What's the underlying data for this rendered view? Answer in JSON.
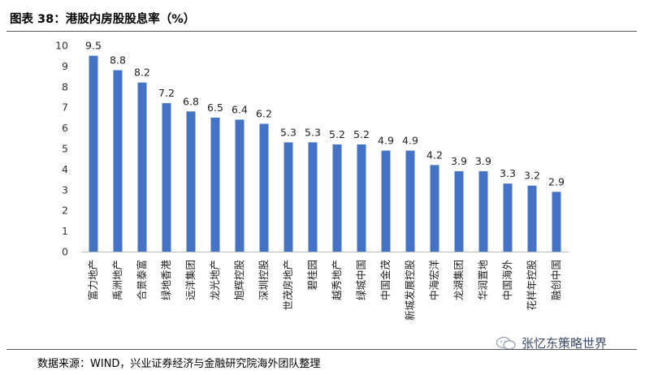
{
  "title": "图表 38：港股内房股股息率（%）",
  "source": "数据来源：WIND，兴业证券经济与金融研究院海外团队整理",
  "watermark": "张忆东策略世界",
  "colors": {
    "bar": "#4472C4",
    "axis": "#bfbfbf"
  },
  "chart_data": {
    "type": "bar",
    "title": "港股内房股股息率（%）",
    "xlabel": "",
    "ylabel": "",
    "ylim": [
      0,
      10
    ],
    "yticks": [
      0,
      1,
      2,
      3,
      4,
      5,
      6,
      7,
      8,
      9,
      10
    ],
    "grid": false,
    "legend": "none",
    "categories": [
      "富力地产",
      "禹洲地产",
      "合景泰富",
      "绿地香港",
      "远洋集团",
      "龙光地产",
      "旭辉控股",
      "深圳控股",
      "世茂房地产",
      "碧桂园",
      "越秀地产",
      "绿城中国",
      "中国金茂",
      "新城发展控股",
      "中海宏洋",
      "龙湖集团",
      "华润置地",
      "中国海外",
      "花样年控股",
      "融创中国"
    ],
    "values": [
      9.5,
      8.8,
      8.2,
      7.2,
      6.8,
      6.5,
      6.4,
      6.2,
      5.3,
      5.3,
      5.2,
      5.2,
      4.9,
      4.9,
      4.2,
      3.9,
      3.9,
      3.3,
      3.2,
      2.9
    ]
  }
}
